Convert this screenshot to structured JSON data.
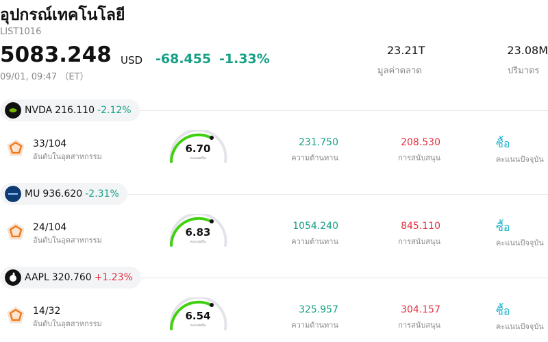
{
  "header": {
    "title": "อุปกรณ์เทคโนโลยี",
    "code": "LIST1016",
    "price": "5083.248",
    "currency": "USD",
    "change": "-68.455",
    "change_pct": "-1.33%",
    "datetime": "09/01, 09:47 （ET）",
    "market_cap": "23.21T",
    "market_cap_label": "มูลค่าตลาด",
    "volume": "23.08M",
    "volume_label": "ปริมาตร"
  },
  "stocks": [
    {
      "symbol": "NVDA",
      "price": "216.110",
      "change_pct": "-2.12%",
      "rank": "33/104",
      "rank_label": "อันดับในอุตสาหกรรม",
      "score": "6.70",
      "score_label": "คะแนนหุ้น",
      "resistance": "231.750",
      "resistance_label": "ความต้านทาน",
      "support": "208.530",
      "support_label": "การสนับสนุน",
      "rating": "ซื้อ",
      "rating_label": "คะแนนปัจจุบัน"
    },
    {
      "symbol": "MU",
      "price": "936.620",
      "change_pct": "-2.31%",
      "rank": "24/104",
      "rank_label": "อันดับในอุตสาหกรรม",
      "score": "6.83",
      "score_label": "คะแนนหุ้น",
      "resistance": "1054.240",
      "resistance_label": "ความต้านทาน",
      "support": "845.110",
      "support_label": "การสนับสนุน",
      "rating": "ซื้อ",
      "rating_label": "คะแนนปัจจุบัน"
    },
    {
      "symbol": "AAPL",
      "price": "320.760",
      "change_pct": "+1.23%",
      "rank": "14/32",
      "rank_label": "อันดับในอุตสาหกรรม",
      "score": "6.54",
      "score_label": "คะแนนหุ้น",
      "resistance": "325.957",
      "resistance_label": "ความต้านทาน",
      "support": "304.157",
      "support_label": "การสนับสนุน",
      "rating": "ซื้อ",
      "rating_label": "คะแนนปัจจุบัน"
    }
  ]
}
